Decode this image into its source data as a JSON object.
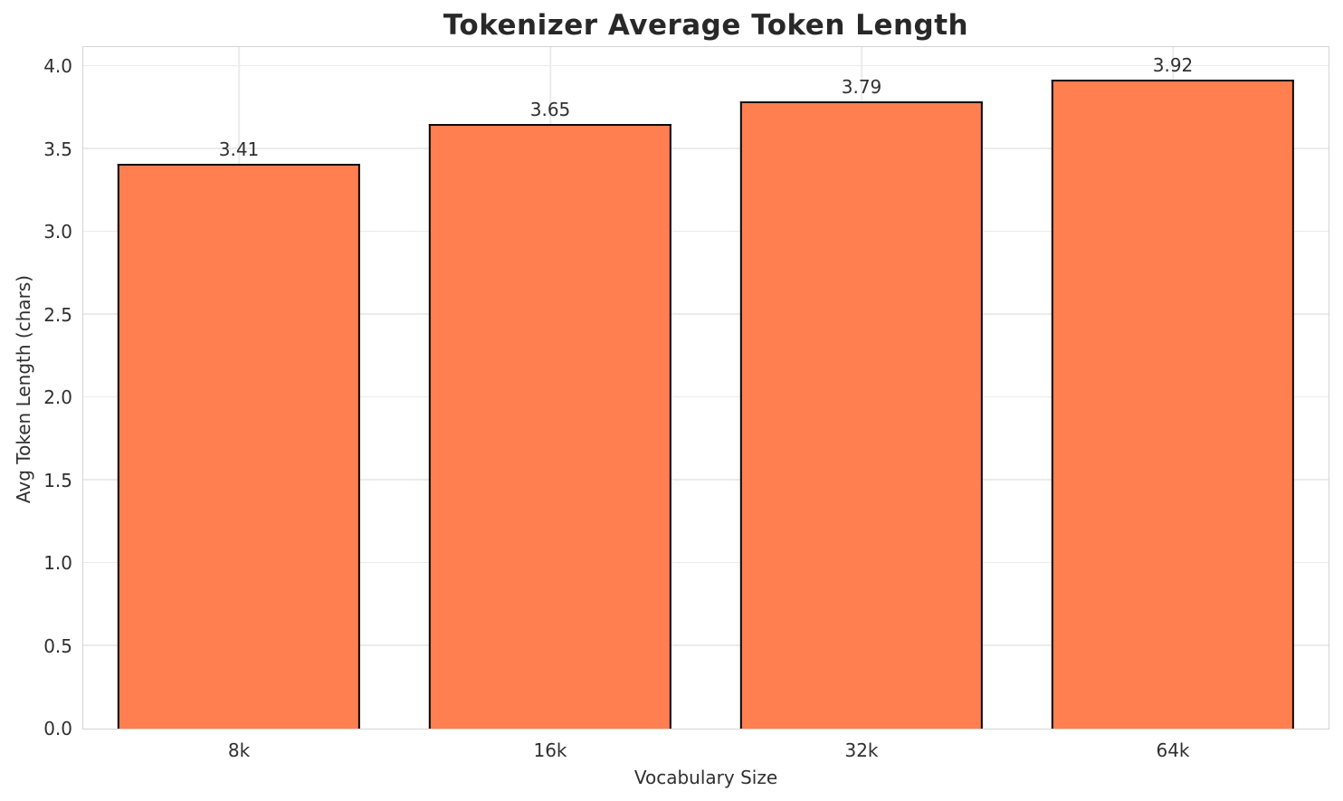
{
  "chart_data": {
    "type": "bar",
    "title": "Tokenizer Average Token Length",
    "xlabel": "Vocabulary Size",
    "ylabel": "Avg Token Length (chars)",
    "categories": [
      "8k",
      "16k",
      "32k",
      "64k"
    ],
    "values": [
      3.41,
      3.65,
      3.79,
      3.92
    ],
    "value_labels": [
      "3.41",
      "3.65",
      "3.79",
      "3.92"
    ],
    "yticks": [
      0.0,
      0.5,
      1.0,
      1.5,
      2.0,
      2.5,
      3.0,
      3.5,
      4.0
    ],
    "ytick_labels": [
      "0.0",
      "0.5",
      "1.0",
      "1.5",
      "2.0",
      "2.5",
      "3.0",
      "3.5",
      "4.0"
    ],
    "ylim": [
      0,
      4.116
    ],
    "grid": "both",
    "legend": "none",
    "bar_fill_color": "#FF7F50",
    "bar_edge_color": "#0a0a0a",
    "grid_color": "#ebebeb",
    "spine_color": "#d4d4d4",
    "text_color": "#303030",
    "title_color": "#282828",
    "bar_width_fraction": 0.78
  }
}
